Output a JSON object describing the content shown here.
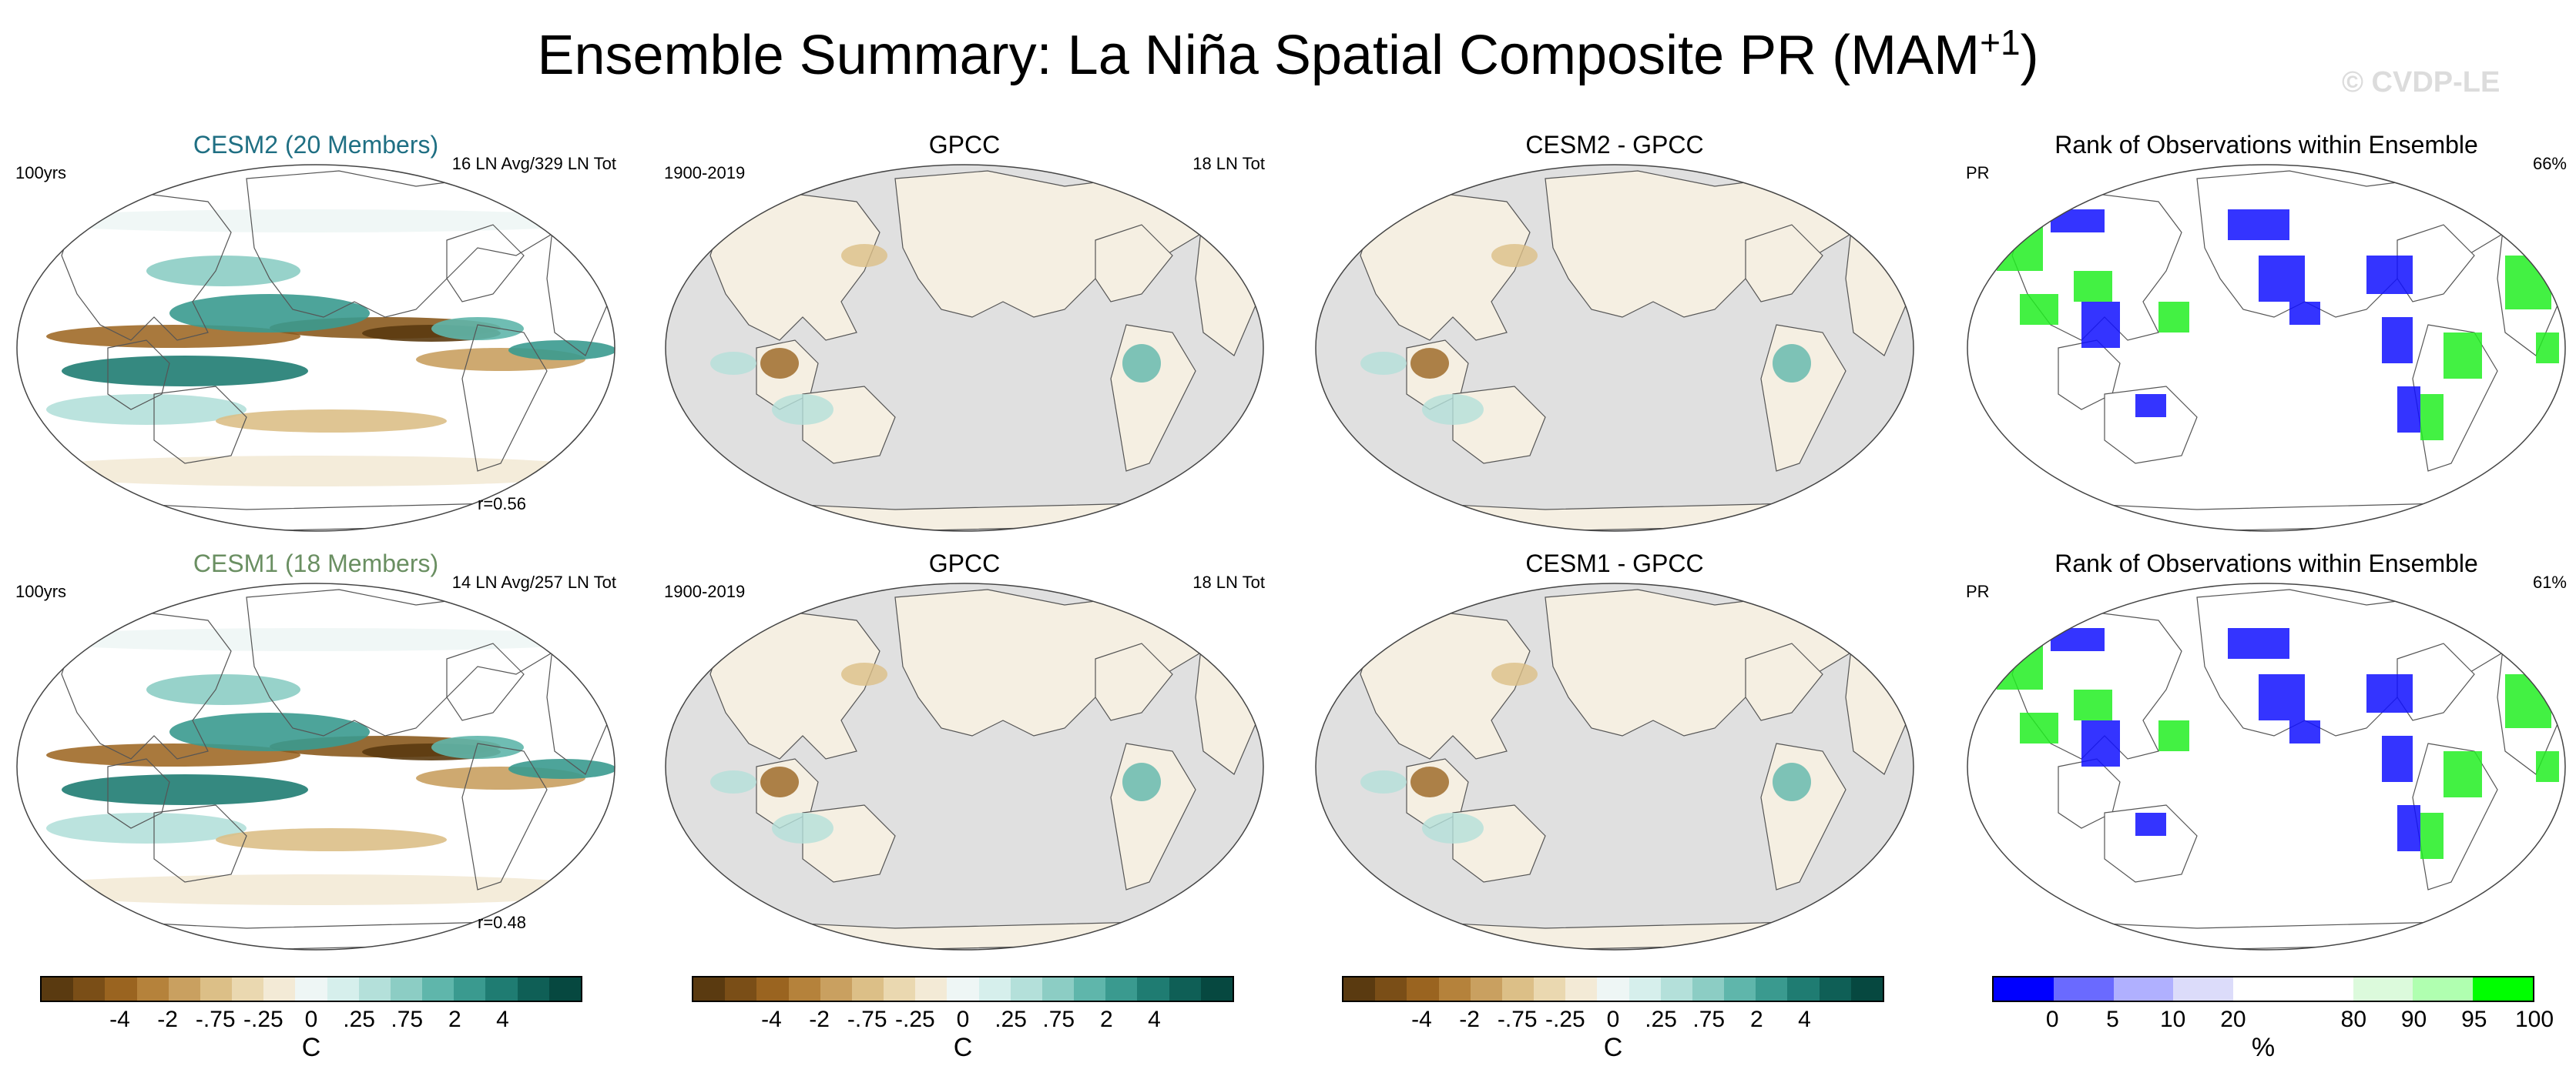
{
  "title": {
    "main": "Ensemble Summary: La Niña Spatial Composite PR (MAM",
    "sup": "+1",
    "close": ")"
  },
  "watermark": "© CVDP-LE",
  "panels": [
    {
      "title": "CESM2 (20 Members)",
      "title_color": "#1f6f83",
      "left_text": "100yrs",
      "right_text": "16 LN Avg/329 LN Tot",
      "bottom_text": "r=0.56",
      "ocean": "data"
    },
    {
      "title": "GPCC",
      "title_color": "#000000",
      "left_text": "1900-2019",
      "right_text": "18 LN Tot",
      "bottom_text": "",
      "ocean": "gray"
    },
    {
      "title": "CESM2 - GPCC",
      "title_color": "#000000",
      "left_text": "",
      "right_text": "",
      "bottom_text": "",
      "ocean": "gray"
    },
    {
      "title": "Rank of Observations within Ensemble",
      "title_color": "#000000",
      "left_text": "PR",
      "right_text": "66%",
      "bottom_text": "",
      "ocean": "rank"
    },
    {
      "title": "CESM1 (18 Members)",
      "title_color": "#6a8f62",
      "left_text": "100yrs",
      "right_text": "14 LN Avg/257 LN Tot",
      "bottom_text": "r=0.48",
      "ocean": "data"
    },
    {
      "title": "GPCC",
      "title_color": "#000000",
      "left_text": "1900-2019",
      "right_text": "18 LN Tot",
      "bottom_text": "",
      "ocean": "gray"
    },
    {
      "title": "CESM1 - GPCC",
      "title_color": "#000000",
      "left_text": "",
      "right_text": "",
      "bottom_text": "",
      "ocean": "gray"
    },
    {
      "title": "Rank of Observations within Ensemble",
      "title_color": "#000000",
      "left_text": "PR",
      "right_text": "61%",
      "bottom_text": "",
      "ocean": "rank"
    }
  ],
  "colorbars": [
    {
      "unit": "C",
      "colors": [
        "#5a3a10",
        "#7a4e17",
        "#9a6420",
        "#b5823b",
        "#c9a060",
        "#dcbf87",
        "#ead8b0",
        "#f3ead6",
        "#eef6f5",
        "#d6efec",
        "#b4e0da",
        "#8ccdc4",
        "#5fb6ab",
        "#3a9a8f",
        "#1f7c72",
        "#0f5f56",
        "#064840"
      ],
      "ticks": [
        "-4",
        "-2",
        "-.75",
        "-.25",
        "0",
        ".25",
        ".75",
        "2",
        "4"
      ]
    },
    {
      "unit": "C",
      "colors": [
        "#5a3a10",
        "#7a4e17",
        "#9a6420",
        "#b5823b",
        "#c9a060",
        "#dcbf87",
        "#ead8b0",
        "#f3ead6",
        "#eef6f5",
        "#d6efec",
        "#b4e0da",
        "#8ccdc4",
        "#5fb6ab",
        "#3a9a8f",
        "#1f7c72",
        "#0f5f56",
        "#064840"
      ],
      "ticks": [
        "-4",
        "-2",
        "-.75",
        "-.25",
        "0",
        ".25",
        ".75",
        "2",
        "4"
      ]
    },
    {
      "unit": "C",
      "colors": [
        "#5a3a10",
        "#7a4e17",
        "#9a6420",
        "#b5823b",
        "#c9a060",
        "#dcbf87",
        "#ead8b0",
        "#f3ead6",
        "#eef6f5",
        "#d6efec",
        "#b4e0da",
        "#8ccdc4",
        "#5fb6ab",
        "#3a9a8f",
        "#1f7c72",
        "#0f5f56",
        "#064840"
      ],
      "ticks": [
        "-4",
        "-2",
        "-.75",
        "-.25",
        "0",
        ".25",
        ".75",
        "2",
        "4"
      ]
    },
    {
      "unit": "%",
      "colors": [
        "#0000ff",
        "#6a6aff",
        "#b0b0ff",
        "#dcdcfa",
        "#ffffff",
        "#ffffff",
        "#dcfadc",
        "#b0ffb0",
        "#00ff00"
      ],
      "ticks": [
        "0",
        "5",
        "10",
        "20",
        "80",
        "90",
        "95",
        "100"
      ]
    }
  ]
}
